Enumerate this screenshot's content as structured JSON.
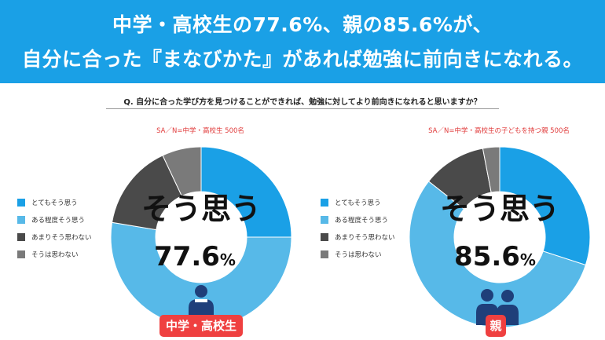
{
  "header": {
    "line1": "中学・高校生の77.6%、親の85.6%が、",
    "line2": "自分に合った『まなびかた』があれば勉強に前向きになれる。"
  },
  "question": "Q. 自分に合った学び方を見つけることができれば、勉強に対してより前向きになれると思いますか？",
  "colors": {
    "banner": "#1aa0e6",
    "very": "#1aa0e6",
    "somewhat": "#57b9e8",
    "not_much": "#4a4a4a",
    "not_at_all": "#7a7a7a",
    "tag": "#ef4040",
    "icon": "#1f3f7a"
  },
  "chart_data": [
    {
      "type": "pie",
      "variant": "donut",
      "sample_note": "SA／N=中学・高校生 500名",
      "categories": [
        "とてもそう思う",
        "ある程度そう思う",
        "あまりそう思わない",
        "そうは思わない"
      ],
      "values": [
        25,
        52.6,
        15.4,
        7
      ],
      "center_label": "そう思う",
      "center_value": "77.6",
      "center_unit": "%",
      "group_label": "中学・高校生",
      "icon": "student-icon"
    },
    {
      "type": "pie",
      "variant": "donut",
      "sample_note": "SA／N=中学・高校生の子どもを持つ親 500名",
      "categories": [
        "とてもそう思う",
        "ある程度そう思う",
        "あまりそう思わない",
        "そうは思わない"
      ],
      "values": [
        30,
        55.6,
        11.4,
        3
      ],
      "center_label": "そう思う",
      "center_value": "85.6",
      "center_unit": "%",
      "group_label": "親",
      "icon": "parents-icon"
    }
  ]
}
